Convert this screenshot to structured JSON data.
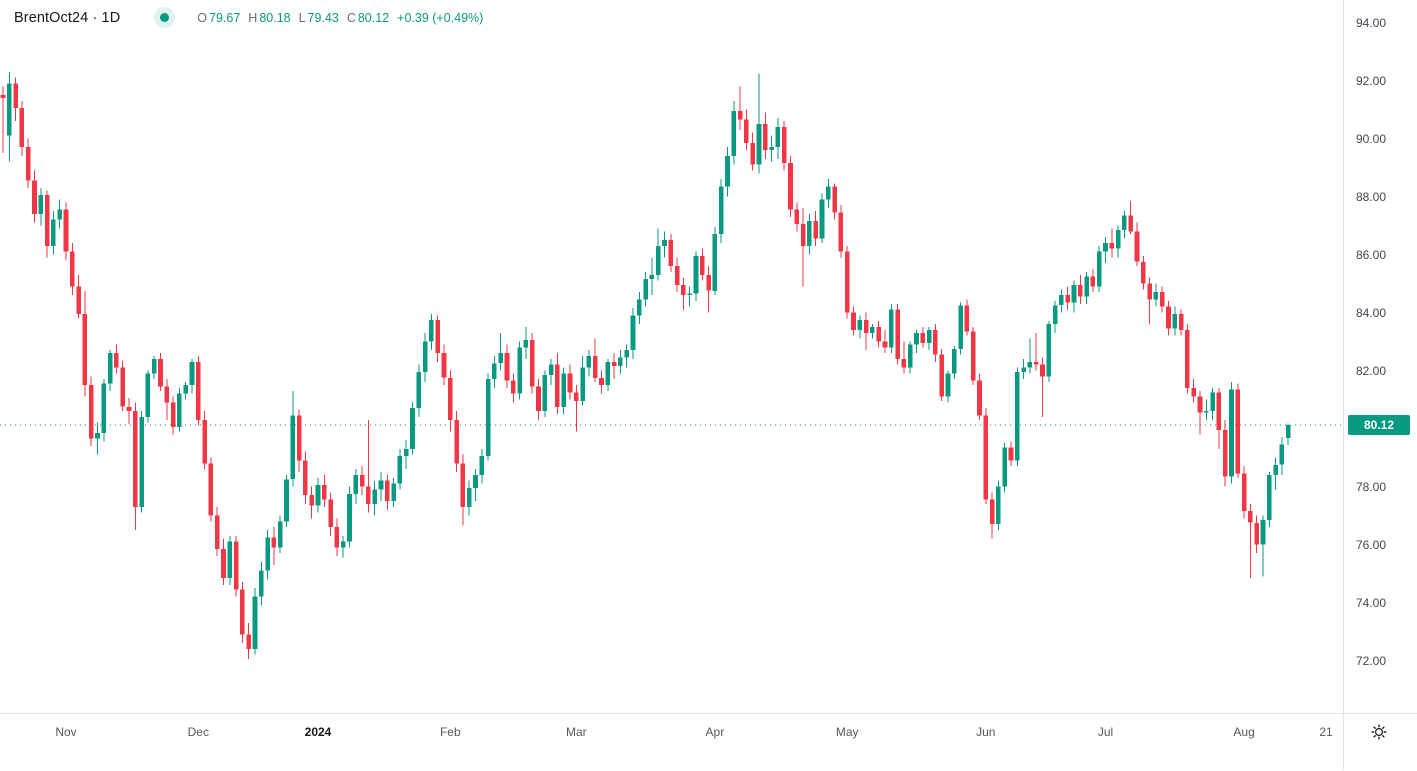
{
  "header": {
    "symbol": "BrentOct24 · 1D",
    "status_dot_color": "#089981",
    "ohlc": {
      "open_label": "O",
      "open": "79.67",
      "high_label": "H",
      "high": "80.18",
      "low_label": "L",
      "low": "79.43",
      "close_label": "C",
      "close": "80.12",
      "change_abs": "+0.39",
      "change_pct": "(+0.49%)"
    }
  },
  "colors": {
    "up": "#089981",
    "down": "#F23645",
    "last_price_line": "#089981",
    "badge_bg": "#089981",
    "badge_text": "#ffffff",
    "axis_text": "#42464e",
    "separator": "#e0e3eb"
  },
  "price_axis": {
    "labels": [
      "94.00",
      "92.00",
      "90.00",
      "88.00",
      "86.00",
      "84.00",
      "82.00",
      "78.00",
      "76.00",
      "74.00",
      "72.00"
    ],
    "last_price_label": "80.12"
  },
  "time_axis": {
    "labels": [
      {
        "text": "Nov",
        "index": 10,
        "year": false
      },
      {
        "text": "Dec",
        "index": 31,
        "year": false
      },
      {
        "text": "2024",
        "index": 50,
        "year": true
      },
      {
        "text": "Feb",
        "index": 71,
        "year": false
      },
      {
        "text": "Mar",
        "index": 91,
        "year": false
      },
      {
        "text": "Apr",
        "index": 113,
        "year": false
      },
      {
        "text": "May",
        "index": 134,
        "year": false
      },
      {
        "text": "Jun",
        "index": 156,
        "year": false
      },
      {
        "text": "Jul",
        "index": 175,
        "year": false
      },
      {
        "text": "Aug",
        "index": 197,
        "year": false
      },
      {
        "text": "21",
        "index": 210,
        "year": false
      }
    ]
  },
  "chart_data": {
    "type": "candlestick",
    "title": "BrentOct24 1D candlestick chart",
    "symbol": "BrentOct24",
    "interval": "1D",
    "y_axis": {
      "min": 72,
      "max": 94,
      "tick_step": 2,
      "grid": false
    },
    "x_axis": {
      "labels": [
        "Nov",
        "Dec",
        "2024",
        "Feb",
        "Mar",
        "Apr",
        "May",
        "Jun",
        "Jul",
        "Aug",
        "21"
      ]
    },
    "last_close": 80.12,
    "last_bar": {
      "open": 79.67,
      "high": 80.18,
      "low": 79.43,
      "close": 80.12,
      "change": 0.39,
      "change_pct": 0.49
    },
    "candles": [
      [
        91.5,
        91.8,
        89.5,
        91.4
      ],
      [
        90.1,
        92.3,
        89.2,
        91.9
      ],
      [
        91.9,
        92.1,
        90.6,
        91.05
      ],
      [
        91.05,
        91.3,
        89.4,
        89.7
      ],
      [
        89.7,
        90.0,
        88.3,
        88.55
      ],
      [
        88.55,
        88.9,
        87.1,
        87.4
      ],
      [
        87.4,
        88.3,
        87.0,
        88.05
      ],
      [
        88.05,
        88.2,
        85.9,
        86.3
      ],
      [
        86.3,
        87.5,
        86.0,
        87.2
      ],
      [
        87.2,
        87.9,
        86.9,
        87.55
      ],
      [
        87.55,
        87.8,
        85.8,
        86.1
      ],
      [
        86.1,
        86.4,
        84.6,
        84.9
      ],
      [
        84.9,
        85.3,
        83.8,
        83.95
      ],
      [
        83.95,
        84.75,
        81.1,
        81.5
      ],
      [
        81.5,
        81.8,
        79.4,
        79.65
      ],
      [
        79.65,
        80.2,
        79.1,
        79.85
      ],
      [
        79.85,
        81.7,
        79.55,
        81.55
      ],
      [
        81.55,
        82.7,
        81.3,
        82.6
      ],
      [
        82.6,
        82.9,
        81.9,
        82.1
      ],
      [
        82.1,
        82.35,
        80.6,
        80.75
      ],
      [
        80.75,
        81.05,
        80.15,
        80.6
      ],
      [
        80.6,
        80.9,
        76.5,
        77.3
      ],
      [
        77.3,
        80.6,
        77.1,
        80.4
      ],
      [
        80.4,
        82.0,
        80.2,
        81.9
      ],
      [
        81.9,
        82.5,
        81.7,
        82.4
      ],
      [
        82.4,
        82.6,
        81.3,
        81.45
      ],
      [
        81.45,
        81.7,
        80.3,
        80.9
      ],
      [
        80.9,
        81.1,
        79.8,
        80.05
      ],
      [
        80.05,
        81.4,
        79.9,
        81.2
      ],
      [
        81.2,
        81.6,
        81.0,
        81.5
      ],
      [
        81.5,
        82.4,
        81.2,
        82.3
      ],
      [
        82.3,
        82.5,
        80.1,
        80.3
      ],
      [
        80.3,
        80.6,
        78.6,
        78.8
      ],
      [
        78.8,
        79.0,
        76.8,
        77.0
      ],
      [
        77.0,
        77.3,
        75.6,
        75.85
      ],
      [
        75.85,
        76.2,
        74.6,
        74.85
      ],
      [
        74.85,
        76.3,
        74.6,
        76.1
      ],
      [
        76.1,
        76.3,
        74.2,
        74.45
      ],
      [
        74.45,
        74.7,
        72.6,
        72.9
      ],
      [
        72.9,
        73.3,
        72.05,
        72.4
      ],
      [
        72.4,
        74.5,
        72.2,
        74.2
      ],
      [
        74.2,
        75.4,
        73.9,
        75.1
      ],
      [
        75.1,
        76.5,
        74.8,
        76.25
      ],
      [
        76.25,
        76.6,
        75.3,
        75.9
      ],
      [
        75.9,
        77.0,
        75.7,
        76.8
      ],
      [
        76.8,
        78.4,
        76.6,
        78.25
      ],
      [
        78.25,
        81.3,
        78.0,
        80.45
      ],
      [
        80.45,
        80.65,
        78.5,
        78.9
      ],
      [
        78.9,
        79.2,
        77.4,
        77.7
      ],
      [
        77.7,
        78.0,
        76.9,
        77.35
      ],
      [
        77.35,
        78.3,
        77.1,
        78.05
      ],
      [
        78.05,
        78.4,
        77.3,
        77.55
      ],
      [
        77.55,
        77.8,
        76.3,
        76.6
      ],
      [
        76.6,
        76.9,
        75.6,
        75.9
      ],
      [
        75.9,
        76.3,
        75.55,
        76.1
      ],
      [
        76.1,
        78.0,
        75.9,
        77.75
      ],
      [
        77.75,
        78.6,
        77.4,
        78.4
      ],
      [
        78.4,
        78.7,
        77.7,
        78.0
      ],
      [
        78.0,
        80.3,
        77.1,
        77.4
      ],
      [
        77.4,
        78.2,
        77.0,
        77.9
      ],
      [
        77.9,
        78.5,
        77.5,
        78.2
      ],
      [
        78.2,
        78.4,
        77.2,
        77.5
      ],
      [
        77.5,
        78.3,
        77.3,
        78.1
      ],
      [
        78.1,
        79.3,
        77.9,
        79.05
      ],
      [
        79.05,
        79.6,
        78.6,
        79.3
      ],
      [
        79.3,
        80.9,
        79.1,
        80.7
      ],
      [
        80.7,
        82.2,
        80.4,
        81.95
      ],
      [
        81.95,
        83.3,
        81.6,
        83.0
      ],
      [
        83.0,
        83.95,
        82.7,
        83.75
      ],
      [
        83.75,
        83.9,
        82.3,
        82.6
      ],
      [
        82.6,
        82.9,
        81.5,
        81.75
      ],
      [
        81.75,
        82.0,
        79.9,
        80.3
      ],
      [
        80.3,
        80.6,
        78.5,
        78.8
      ],
      [
        78.8,
        79.1,
        76.65,
        77.3
      ],
      [
        77.3,
        78.2,
        77.0,
        77.95
      ],
      [
        77.95,
        78.6,
        77.5,
        78.4
      ],
      [
        78.4,
        79.3,
        78.1,
        79.05
      ],
      [
        79.05,
        81.9,
        78.9,
        81.7
      ],
      [
        81.7,
        82.5,
        81.4,
        82.25
      ],
      [
        82.25,
        83.3,
        82.0,
        82.6
      ],
      [
        82.6,
        82.9,
        81.4,
        81.65
      ],
      [
        81.65,
        81.9,
        80.9,
        81.2
      ],
      [
        81.2,
        83.0,
        81.0,
        82.8
      ],
      [
        82.8,
        83.5,
        82.4,
        83.05
      ],
      [
        83.05,
        83.3,
        81.2,
        81.45
      ],
      [
        81.45,
        81.7,
        80.3,
        80.6
      ],
      [
        80.6,
        82.0,
        80.4,
        81.85
      ],
      [
        81.85,
        82.4,
        81.5,
        82.2
      ],
      [
        82.2,
        82.6,
        80.5,
        80.75
      ],
      [
        80.75,
        82.1,
        80.5,
        81.9
      ],
      [
        81.9,
        82.2,
        81.0,
        81.25
      ],
      [
        81.25,
        81.5,
        79.9,
        80.95
      ],
      [
        80.95,
        82.5,
        80.8,
        82.1
      ],
      [
        82.1,
        82.7,
        81.8,
        82.5
      ],
      [
        82.5,
        83.1,
        81.6,
        81.75
      ],
      [
        81.75,
        82.0,
        81.2,
        81.5
      ],
      [
        81.5,
        82.4,
        81.3,
        82.3
      ],
      [
        82.3,
        82.6,
        81.7,
        82.15
      ],
      [
        82.15,
        82.7,
        81.9,
        82.45
      ],
      [
        82.45,
        82.9,
        82.1,
        82.7
      ],
      [
        82.7,
        84.15,
        82.4,
        83.9
      ],
      [
        83.9,
        84.7,
        83.6,
        84.45
      ],
      [
        84.45,
        85.4,
        84.2,
        85.15
      ],
      [
        85.15,
        85.9,
        84.6,
        85.3
      ],
      [
        85.3,
        86.9,
        85.1,
        86.3
      ],
      [
        86.3,
        86.8,
        85.9,
        86.5
      ],
      [
        86.5,
        86.7,
        85.4,
        85.6
      ],
      [
        85.6,
        85.9,
        84.7,
        84.95
      ],
      [
        84.95,
        85.2,
        84.1,
        84.6
      ],
      [
        84.6,
        84.9,
        84.2,
        84.65
      ],
      [
        84.65,
        86.1,
        84.4,
        85.95
      ],
      [
        85.95,
        86.2,
        85.1,
        85.3
      ],
      [
        85.3,
        85.6,
        84.0,
        84.75
      ],
      [
        84.75,
        86.95,
        84.6,
        86.7
      ],
      [
        86.7,
        88.6,
        86.4,
        88.35
      ],
      [
        88.35,
        89.7,
        88.0,
        89.4
      ],
      [
        89.4,
        91.3,
        89.1,
        90.95
      ],
      [
        90.95,
        91.8,
        90.3,
        90.65
      ],
      [
        90.65,
        91.0,
        89.6,
        89.85
      ],
      [
        89.85,
        90.2,
        88.9,
        89.1
      ],
      [
        89.1,
        92.25,
        88.8,
        90.5
      ],
      [
        90.5,
        90.9,
        89.3,
        89.6
      ],
      [
        89.6,
        90.1,
        89.2,
        89.7
      ],
      [
        89.7,
        90.7,
        89.3,
        90.4
      ],
      [
        90.4,
        90.6,
        88.9,
        89.15
      ],
      [
        89.15,
        89.4,
        87.3,
        87.55
      ],
      [
        87.55,
        87.8,
        86.8,
        87.05
      ],
      [
        87.05,
        87.6,
        84.9,
        86.3
      ],
      [
        86.3,
        87.4,
        86.0,
        87.15
      ],
      [
        87.15,
        87.5,
        86.3,
        86.55
      ],
      [
        86.55,
        88.1,
        86.4,
        87.9
      ],
      [
        87.9,
        88.6,
        87.6,
        88.35
      ],
      [
        88.35,
        88.45,
        87.2,
        87.45
      ],
      [
        87.45,
        87.7,
        85.9,
        86.1
      ],
      [
        86.1,
        86.3,
        83.8,
        84.0
      ],
      [
        84.0,
        84.2,
        83.2,
        83.4
      ],
      [
        83.4,
        83.9,
        83.1,
        83.75
      ],
      [
        83.75,
        84.0,
        82.7,
        83.3
      ],
      [
        83.3,
        83.6,
        83.1,
        83.5
      ],
      [
        83.5,
        83.7,
        82.8,
        83.0
      ],
      [
        83.0,
        83.4,
        82.6,
        82.8
      ],
      [
        82.8,
        84.3,
        82.6,
        84.1
      ],
      [
        84.1,
        84.3,
        82.2,
        82.4
      ],
      [
        82.4,
        83.0,
        81.9,
        82.1
      ],
      [
        82.1,
        83.0,
        81.9,
        82.9
      ],
      [
        82.9,
        83.4,
        82.6,
        83.3
      ],
      [
        83.3,
        83.5,
        82.8,
        82.95
      ],
      [
        82.95,
        83.5,
        82.7,
        83.4
      ],
      [
        83.4,
        83.6,
        82.3,
        82.55
      ],
      [
        82.55,
        82.75,
        80.95,
        81.1
      ],
      [
        81.1,
        82.0,
        80.9,
        81.9
      ],
      [
        81.9,
        82.85,
        81.7,
        82.75
      ],
      [
        82.75,
        84.35,
        82.55,
        84.25
      ],
      [
        84.25,
        84.45,
        83.2,
        83.35
      ],
      [
        83.35,
        83.5,
        81.5,
        81.65
      ],
      [
        81.65,
        81.9,
        80.3,
        80.45
      ],
      [
        80.45,
        80.7,
        77.4,
        77.55
      ],
      [
        77.55,
        77.8,
        76.2,
        76.7
      ],
      [
        76.7,
        78.2,
        76.5,
        78.0
      ],
      [
        78.0,
        79.5,
        77.8,
        79.35
      ],
      [
        79.35,
        79.55,
        78.7,
        78.9
      ],
      [
        78.9,
        82.1,
        78.7,
        81.95
      ],
      [
        81.95,
        82.4,
        81.7,
        82.1
      ],
      [
        82.1,
        83.1,
        81.9,
        82.3
      ],
      [
        82.3,
        83.3,
        82.0,
        82.2
      ],
      [
        82.2,
        82.45,
        80.4,
        81.8
      ],
      [
        81.8,
        83.7,
        81.6,
        83.6
      ],
      [
        83.6,
        84.4,
        83.3,
        84.25
      ],
      [
        84.25,
        84.8,
        84.0,
        84.6
      ],
      [
        84.6,
        84.9,
        84.1,
        84.35
      ],
      [
        84.35,
        85.1,
        84.0,
        84.95
      ],
      [
        84.95,
        85.3,
        84.3,
        84.55
      ],
      [
        84.55,
        85.4,
        84.3,
        85.25
      ],
      [
        85.25,
        85.5,
        84.7,
        84.9
      ],
      [
        84.9,
        86.3,
        84.7,
        86.1
      ],
      [
        86.1,
        86.6,
        85.7,
        86.4
      ],
      [
        86.4,
        86.9,
        85.9,
        86.2
      ],
      [
        86.2,
        87.0,
        85.9,
        86.85
      ],
      [
        86.85,
        87.5,
        86.55,
        87.35
      ],
      [
        87.35,
        87.85,
        86.7,
        86.8
      ],
      [
        86.8,
        87.1,
        85.6,
        85.75
      ],
      [
        85.75,
        85.95,
        84.8,
        85.0
      ],
      [
        85.0,
        85.2,
        83.6,
        84.45
      ],
      [
        84.45,
        85.0,
        84.2,
        84.7
      ],
      [
        84.7,
        84.9,
        84.0,
        84.2
      ],
      [
        84.2,
        84.4,
        83.2,
        83.45
      ],
      [
        83.45,
        84.2,
        83.2,
        83.95
      ],
      [
        83.95,
        84.1,
        83.2,
        83.4
      ],
      [
        83.4,
        83.6,
        81.2,
        81.4
      ],
      [
        81.4,
        81.7,
        80.9,
        81.1
      ],
      [
        81.1,
        81.3,
        79.8,
        80.55
      ],
      [
        80.55,
        81.0,
        80.3,
        80.6
      ],
      [
        80.6,
        81.4,
        80.3,
        81.25
      ],
      [
        81.25,
        81.4,
        79.3,
        79.95
      ],
      [
        79.95,
        80.3,
        78.0,
        78.35
      ],
      [
        78.35,
        81.6,
        78.1,
        81.35
      ],
      [
        81.35,
        81.55,
        78.3,
        78.45
      ],
      [
        78.45,
        78.7,
        76.9,
        77.15
      ],
      [
        77.15,
        77.4,
        74.85,
        76.75
      ],
      [
        76.75,
        77.0,
        75.7,
        76.0
      ],
      [
        76.0,
        77.0,
        74.9,
        76.85
      ],
      [
        76.85,
        78.5,
        76.6,
        78.4
      ],
      [
        78.4,
        79.0,
        77.9,
        78.75
      ],
      [
        78.75,
        79.7,
        78.4,
        79.45
      ],
      [
        79.67,
        80.18,
        79.43,
        80.12
      ]
    ]
  }
}
